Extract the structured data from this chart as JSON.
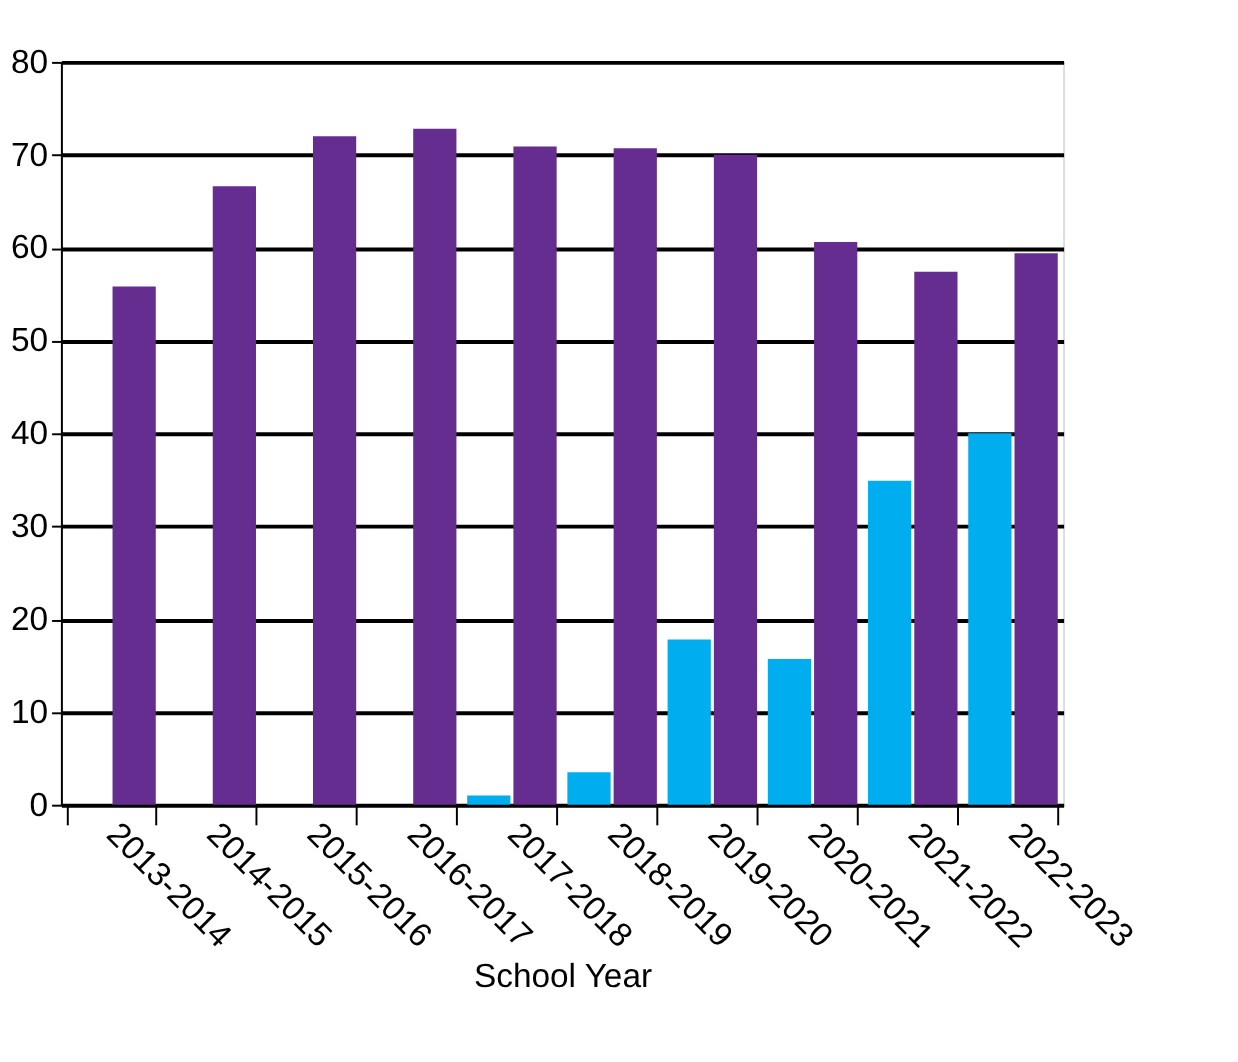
{
  "chart_data": {
    "type": "bar",
    "xlabel": "School Year",
    "categories": [
      "2013-2014",
      "2014-2015",
      "2015-2016",
      "2016-2017",
      "2017-2018",
      "2018-2019",
      "2019-2020",
      "2020-2021",
      "2021-2022",
      "2022-2023"
    ],
    "series": [
      {
        "color": "#00aeef",
        "values": [
          null,
          null,
          null,
          null,
          1,
          3.5,
          17.8,
          15.7,
          34.9,
          40
        ]
      },
      {
        "color": "#662d91",
        "values": [
          55.8,
          66.6,
          72,
          72.8,
          70.9,
          70.7,
          70,
          60.6,
          57.4,
          59.4
        ]
      }
    ],
    "ylim": [
      0,
      80
    ],
    "yticks": [
      0,
      10,
      20,
      30,
      40,
      50,
      60,
      70,
      80
    ],
    "grid": "y",
    "legend": false
  }
}
